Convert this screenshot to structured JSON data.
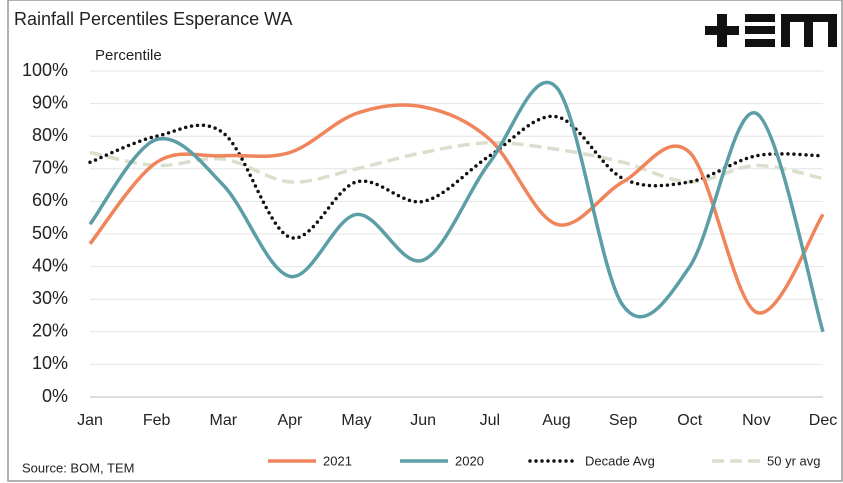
{
  "chart_data": {
    "type": "line",
    "title": "Rainfall Percentiles Esperance WA",
    "y_label": "Percentile",
    "source": "Source: BOM, TEM",
    "categories": [
      "Jan",
      "Feb",
      "Mar",
      "Apr",
      "May",
      "Jun",
      "Jul",
      "Aug",
      "Sep",
      "Oct",
      "Nov",
      "Dec"
    ],
    "series": [
      {
        "name": "2021",
        "color": "#f0845a",
        "style": "solid",
        "values": [
          47,
          72,
          74,
          75,
          87,
          89,
          79,
          53,
          66,
          75,
          26,
          56
        ]
      },
      {
        "name": "2020",
        "color": "#5b9ea6",
        "style": "solid",
        "values": [
          53,
          79,
          65,
          37,
          56,
          42,
          72,
          95,
          28,
          40,
          87,
          20
        ]
      },
      {
        "name": "Decade Avg",
        "color": "#111111",
        "style": "dotted",
        "values": [
          72,
          80,
          81,
          49,
          66,
          60,
          74,
          86,
          67,
          66,
          74,
          74
        ]
      },
      {
        "name": "50 yr avg",
        "color": "#d9dfcc",
        "style": "dashed",
        "values": [
          75,
          71,
          73,
          66,
          70,
          75,
          78,
          76,
          72,
          66,
          71,
          67
        ]
      }
    ],
    "ylim": [
      0,
      100
    ],
    "yticks": [
      {
        "value": 0,
        "label": "0%"
      },
      {
        "value": 10,
        "label": "10%"
      },
      {
        "value": 20,
        "label": "20%"
      },
      {
        "value": 30,
        "label": "30%"
      },
      {
        "value": 40,
        "label": "40%"
      },
      {
        "value": 50,
        "label": "50%"
      },
      {
        "value": 60,
        "label": "60%"
      },
      {
        "value": 70,
        "label": "70%"
      },
      {
        "value": 80,
        "label": "80%"
      },
      {
        "value": 90,
        "label": "90%"
      },
      {
        "value": 100,
        "label": "100%"
      }
    ],
    "grid": true,
    "legend": "bottom"
  }
}
